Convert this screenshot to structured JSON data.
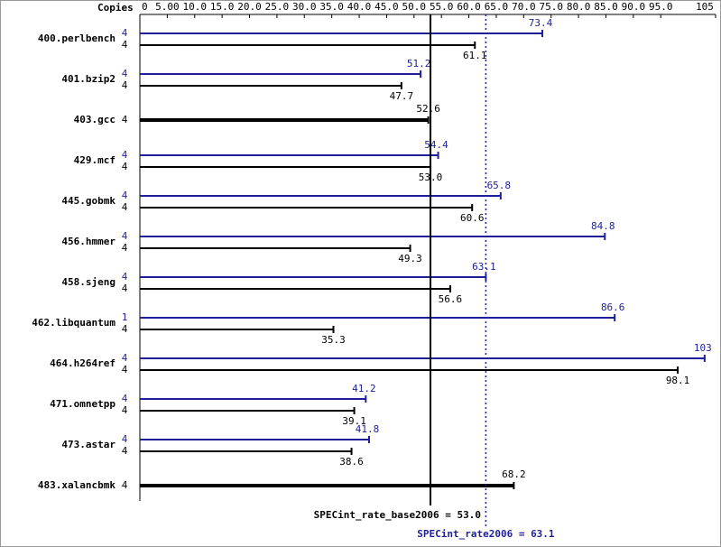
{
  "chart_data": {
    "type": "bar",
    "orientation": "horizontal",
    "copies_label": "Copies",
    "categories": [
      "400.perlbench",
      "401.bzip2",
      "403.gcc",
      "429.mcf",
      "445.gobmk",
      "456.hmmer",
      "458.sjeng",
      "462.libquantum",
      "464.h264ref",
      "471.omnetpp",
      "473.astar",
      "483.xalancbmk"
    ],
    "series": [
      {
        "color": "#1f1f99",
        "copies": [
          4,
          4,
          null,
          4,
          4,
          4,
          4,
          1,
          4,
          4,
          4,
          null
        ],
        "values": [
          73.4,
          51.2,
          null,
          54.4,
          65.8,
          84.8,
          63.1,
          86.6,
          103,
          41.2,
          41.8,
          null
        ]
      },
      {
        "color": "#000000",
        "copies": [
          4,
          4,
          4,
          4,
          4,
          4,
          4,
          4,
          4,
          4,
          4,
          4
        ],
        "values": [
          61.1,
          47.7,
          52.6,
          53.0,
          60.6,
          49.3,
          56.6,
          35.3,
          98.1,
          39.1,
          38.6,
          68.2
        ],
        "value_labels": [
          "61.1",
          "47.7",
          "52.6",
          "53.0",
          "60.6",
          "49.3",
          "56.6",
          "35.3",
          "98.1",
          "39.1",
          "38.6",
          "68.2"
        ]
      }
    ],
    "xlim": [
      0,
      105
    ],
    "xticks": [
      0,
      {
        "value": 5,
        "label": "5.00"
      },
      {
        "value": 10,
        "label": "10.0"
      },
      {
        "value": 15,
        "label": "15.0"
      },
      {
        "value": 20,
        "label": "20.0"
      },
      {
        "value": 25,
        "label": "25.0"
      },
      {
        "value": 30,
        "label": "30.0"
      },
      {
        "value": 35,
        "label": "35.0"
      },
      {
        "value": 40,
        "label": "40.0"
      },
      {
        "value": 45,
        "label": "45.0"
      },
      {
        "value": 50,
        "label": "50.0"
      },
      {
        "value": 55,
        "label": "55.0"
      },
      {
        "value": 60,
        "label": "60.0"
      },
      {
        "value": 65,
        "label": "65.0"
      },
      {
        "value": 70,
        "label": "70.0"
      },
      {
        "value": 75,
        "label": "75.0"
      },
      {
        "value": 80,
        "label": "80.0"
      },
      {
        "value": 85,
        "label": "85.0"
      },
      {
        "value": 90,
        "label": "90.0"
      },
      {
        "value": 95,
        "label": "95.0"
      },
      105
    ],
    "reference_lines": [
      {
        "label": "SPECint_rate_base2006 = 53.0",
        "value": 53.0,
        "color": "#000000",
        "style": "solid"
      },
      {
        "label": "SPECint_rate2006 = 63.1",
        "value": 63.1,
        "color": "#1f1f99",
        "style": "dotted"
      }
    ]
  }
}
